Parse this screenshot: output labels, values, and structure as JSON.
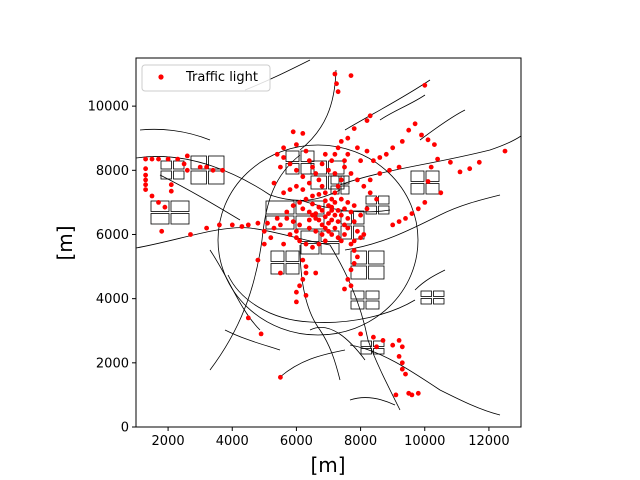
{
  "chart_data": {
    "type": "scatter",
    "title": "",
    "xlabel": "[m]",
    "ylabel": "[m]",
    "xlim": [
      1000,
      13000
    ],
    "ylim": [
      0,
      11500
    ],
    "xticks": [
      2000,
      4000,
      6000,
      8000,
      10000,
      12000
    ],
    "yticks": [
      0,
      2000,
      4000,
      6000,
      8000,
      10000
    ],
    "xtick_labels": [
      "2000",
      "4000",
      "6000",
      "8000",
      "10000",
      "12000"
    ],
    "ytick_labels": [
      "0",
      "2000",
      "4000",
      "6000",
      "8000",
      "10000"
    ],
    "grid": false,
    "legend": {
      "placement": "top-left",
      "entries": [
        "Traffic light"
      ]
    },
    "colors": {
      "points": "#ff0000",
      "network": "#000000"
    },
    "series": [
      {
        "name": "Traffic light",
        "points": [
          [
            7200,
            11000
          ],
          [
            7700,
            10950
          ],
          [
            7250,
            10700
          ],
          [
            7300,
            10450
          ],
          [
            10000,
            10650
          ],
          [
            8200,
            9550
          ],
          [
            8300,
            9700
          ],
          [
            7800,
            9300
          ],
          [
            5900,
            9200
          ],
          [
            6200,
            9150
          ],
          [
            7600,
            9000
          ],
          [
            7400,
            8900
          ],
          [
            7300,
            8700
          ],
          [
            7200,
            8500
          ],
          [
            9500,
            9250
          ],
          [
            9700,
            9450
          ],
          [
            9900,
            9100
          ],
          [
            10100,
            8950
          ],
          [
            10300,
            8800
          ],
          [
            9300,
            8900
          ],
          [
            9000,
            8700
          ],
          [
            8800,
            8500
          ],
          [
            8600,
            8400
          ],
          [
            8400,
            8300
          ],
          [
            12500,
            8600
          ],
          [
            11700,
            8250
          ],
          [
            11400,
            8050
          ],
          [
            11100,
            7950
          ],
          [
            10800,
            8250
          ],
          [
            10400,
            8350
          ],
          [
            10200,
            8100
          ],
          [
            10100,
            7650
          ],
          [
            10500,
            7300
          ],
          [
            10000,
            7000
          ],
          [
            9800,
            6800
          ],
          [
            9600,
            6650
          ],
          [
            9400,
            6500
          ],
          [
            9200,
            6400
          ],
          [
            9000,
            6300
          ],
          [
            1300,
            8350
          ],
          [
            1500,
            8350
          ],
          [
            1700,
            8350
          ],
          [
            2000,
            8350
          ],
          [
            2300,
            8350
          ],
          [
            2600,
            8450
          ],
          [
            2500,
            8200
          ],
          [
            1300,
            8050
          ],
          [
            1300,
            7850
          ],
          [
            1300,
            7700
          ],
          [
            1300,
            7550
          ],
          [
            1300,
            7400
          ],
          [
            1500,
            7200
          ],
          [
            1700,
            7000
          ],
          [
            1900,
            6850
          ],
          [
            1800,
            6100
          ],
          [
            2100,
            7550
          ],
          [
            2100,
            7350
          ],
          [
            2600,
            8000
          ],
          [
            3000,
            8100
          ],
          [
            3200,
            8100
          ],
          [
            3400,
            8000
          ],
          [
            3700,
            8000
          ],
          [
            2700,
            6000
          ],
          [
            3200,
            6200
          ],
          [
            3600,
            6300
          ],
          [
            4000,
            6300
          ],
          [
            4300,
            6250
          ],
          [
            4500,
            6300
          ],
          [
            4800,
            6350
          ],
          [
            5100,
            6350
          ],
          [
            5400,
            6500
          ],
          [
            5700,
            6700
          ],
          [
            5300,
            7600
          ],
          [
            5500,
            8100
          ],
          [
            5400,
            8500
          ],
          [
            5600,
            8700
          ],
          [
            6000,
            8800
          ],
          [
            6300,
            8600
          ],
          [
            6400,
            8300
          ],
          [
            6500,
            8100
          ],
          [
            6600,
            7900
          ],
          [
            6700,
            7700
          ],
          [
            6800,
            7500
          ],
          [
            6900,
            7300
          ],
          [
            6700,
            7250
          ],
          [
            6500,
            7200
          ],
          [
            6300,
            7100
          ],
          [
            6100,
            7000
          ],
          [
            5900,
            6900
          ],
          [
            5700,
            6500
          ],
          [
            5900,
            6400
          ],
          [
            6100,
            6300
          ],
          [
            6000,
            6100
          ],
          [
            5800,
            6000
          ],
          [
            6200,
            6800
          ],
          [
            6400,
            6700
          ],
          [
            6500,
            6600
          ],
          [
            6600,
            6500
          ],
          [
            6700,
            6450
          ],
          [
            6800,
            6300
          ],
          [
            6900,
            6200
          ],
          [
            7000,
            6100
          ],
          [
            7100,
            6000
          ],
          [
            7200,
            6200
          ],
          [
            7300,
            6400
          ],
          [
            7200,
            6600
          ],
          [
            7100,
            6750
          ],
          [
            7000,
            6900
          ],
          [
            7100,
            7100
          ],
          [
            7200,
            7300
          ],
          [
            7300,
            7500
          ],
          [
            7400,
            7700
          ],
          [
            7200,
            7900
          ],
          [
            7000,
            8000
          ],
          [
            6800,
            8200
          ],
          [
            6900,
            8500
          ],
          [
            7100,
            8300
          ],
          [
            7500,
            8100
          ],
          [
            7700,
            7900
          ],
          [
            7900,
            7700
          ],
          [
            8100,
            7500
          ],
          [
            8300,
            7300
          ],
          [
            8500,
            7100
          ],
          [
            8200,
            6800
          ],
          [
            8000,
            6600
          ],
          [
            7800,
            6400
          ],
          [
            7600,
            6200
          ],
          [
            7500,
            6000
          ],
          [
            7400,
            5800
          ],
          [
            7300,
            5900
          ],
          [
            7500,
            6300
          ],
          [
            7600,
            6500
          ],
          [
            7700,
            6700
          ],
          [
            7800,
            6900
          ],
          [
            7700,
            5700
          ],
          [
            7800,
            5500
          ],
          [
            7900,
            5300
          ],
          [
            7800,
            5100
          ],
          [
            7700,
            4900
          ],
          [
            7600,
            4600
          ],
          [
            7500,
            4300
          ],
          [
            7700,
            4400
          ],
          [
            6900,
            5800
          ],
          [
            6700,
            5700
          ],
          [
            6500,
            5600
          ],
          [
            6300,
            5700
          ],
          [
            6100,
            5800
          ],
          [
            6000,
            5900
          ],
          [
            6200,
            5200
          ],
          [
            6300,
            5000
          ],
          [
            6300,
            4800
          ],
          [
            6200,
            4600
          ],
          [
            6100,
            4400
          ],
          [
            6000,
            4200
          ],
          [
            6000,
            3900
          ],
          [
            6300,
            4100
          ],
          [
            6600,
            4800
          ],
          [
            5500,
            4800
          ],
          [
            5000,
            5700
          ],
          [
            5200,
            5900
          ],
          [
            5600,
            5700
          ],
          [
            5000,
            6100
          ],
          [
            5300,
            6200
          ],
          [
            5500,
            6300
          ],
          [
            4800,
            5200
          ],
          [
            4500,
            3400
          ],
          [
            4900,
            2900
          ],
          [
            5500,
            1550
          ],
          [
            8700,
            2700
          ],
          [
            8500,
            2500
          ],
          [
            9000,
            2550
          ],
          [
            9200,
            2700
          ],
          [
            9300,
            2500
          ],
          [
            9200,
            2200
          ],
          [
            9300,
            2000
          ],
          [
            9300,
            1800
          ],
          [
            9400,
            1650
          ],
          [
            9100,
            1000
          ],
          [
            9500,
            1050
          ],
          [
            9600,
            1000
          ],
          [
            9800,
            1050
          ],
          [
            8400,
            2800
          ],
          [
            8000,
            2900
          ],
          [
            6800,
            6000
          ],
          [
            6600,
            6100
          ],
          [
            6400,
            6200
          ],
          [
            6400,
            6450
          ],
          [
            6600,
            6650
          ],
          [
            6800,
            6750
          ],
          [
            7000,
            6650
          ],
          [
            7100,
            6450
          ],
          [
            7000,
            6350
          ],
          [
            6900,
            6550
          ],
          [
            6700,
            6850
          ],
          [
            6500,
            6950
          ],
          [
            6900,
            7050
          ],
          [
            7100,
            6850
          ],
          [
            7300,
            6750
          ],
          [
            7400,
            6600
          ],
          [
            7500,
            6800
          ],
          [
            7600,
            7000
          ],
          [
            7400,
            7100
          ],
          [
            7200,
            7000
          ],
          [
            7900,
            6100
          ],
          [
            8000,
            5900
          ],
          [
            8100,
            6000
          ],
          [
            7800,
            5800
          ],
          [
            8300,
            7700
          ],
          [
            8600,
            7900
          ],
          [
            8900,
            8000
          ],
          [
            9200,
            8100
          ],
          [
            8000,
            8300
          ],
          [
            8200,
            8600
          ],
          [
            7900,
            8700
          ],
          [
            7600,
            8500
          ],
          [
            7500,
            8300
          ],
          [
            6200,
            7400
          ],
          [
            6000,
            7500
          ],
          [
            5800,
            7400
          ],
          [
            5600,
            7300
          ],
          [
            6400,
            7600
          ],
          [
            6200,
            7800
          ],
          [
            6000,
            8000
          ],
          [
            5800,
            8200
          ],
          [
            5600,
            8400
          ]
        ]
      }
    ]
  }
}
